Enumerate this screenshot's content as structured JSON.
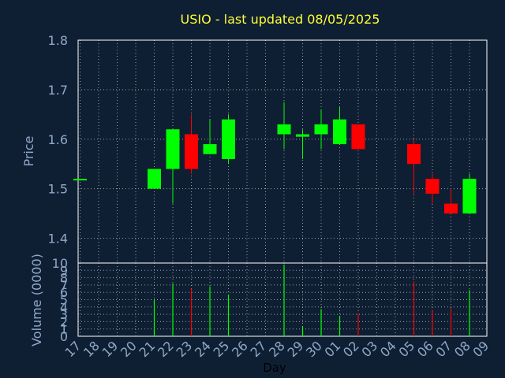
{
  "chart_data": {
    "type": "candlestick",
    "title": "USIO - last updated 08/05/2025",
    "xlabel": "Day",
    "price_panel": {
      "ylabel": "Price",
      "ylim": [
        1.35,
        1.8
      ],
      "yticks": [
        "1.4",
        "1.5",
        "1.6",
        "1.7",
        "1.8"
      ],
      "grid": true
    },
    "volume_panel": {
      "ylabel": "Volume (0000)",
      "ylim": [
        0,
        10
      ],
      "yticks": [
        "0",
        "1",
        "2",
        "3",
        "4",
        "5",
        "6",
        "7",
        "8",
        "9",
        "10"
      ],
      "grid": true
    },
    "x_ticks": [
      "17",
      "18",
      "19",
      "20",
      "21",
      "22",
      "23",
      "24",
      "25",
      "26",
      "27",
      "28",
      "29",
      "30",
      "01",
      "02",
      "03",
      "04",
      "05",
      "06",
      "07",
      "08",
      "09"
    ],
    "colors": {
      "up": "#00ff00",
      "down": "#ff0000",
      "flat": "#00ff00",
      "title": "#ffff33",
      "text": "#8fa8c8",
      "background": "#0f1f33"
    },
    "candles": [
      {
        "day": "17",
        "open": 1.52,
        "high": 1.52,
        "low": 1.52,
        "close": 1.52,
        "volume": 0.0
      },
      {
        "day": "21",
        "open": 1.5,
        "high": 1.54,
        "low": 1.5,
        "close": 1.54,
        "volume": 5.0
      },
      {
        "day": "22",
        "open": 1.54,
        "high": 1.62,
        "low": 1.47,
        "close": 1.62,
        "volume": 7.2
      },
      {
        "day": "23",
        "open": 1.61,
        "high": 1.65,
        "low": 1.53,
        "close": 1.54,
        "volume": 6.5
      },
      {
        "day": "24",
        "open": 1.57,
        "high": 1.64,
        "low": 1.57,
        "close": 1.59,
        "volume": 6.8
      },
      {
        "day": "25",
        "open": 1.56,
        "high": 1.65,
        "low": 1.55,
        "close": 1.64,
        "volume": 5.7
      },
      {
        "day": "28",
        "open": 1.61,
        "high": 1.675,
        "low": 1.58,
        "close": 1.63,
        "volume": 9.8
      },
      {
        "day": "29",
        "open": 1.605,
        "high": 1.62,
        "low": 1.56,
        "close": 1.61,
        "volume": 1.3
      },
      {
        "day": "30",
        "open": 1.61,
        "high": 1.66,
        "low": 1.58,
        "close": 1.63,
        "volume": 3.7
      },
      {
        "day": "01",
        "open": 1.59,
        "high": 1.665,
        "low": 1.59,
        "close": 1.64,
        "volume": 2.8
      },
      {
        "day": "02",
        "open": 1.63,
        "high": 1.63,
        "low": 1.58,
        "close": 1.58,
        "volume": 3.1
      },
      {
        "day": "05",
        "open": 1.59,
        "high": 1.6,
        "low": 1.49,
        "close": 1.55,
        "volume": 7.5
      },
      {
        "day": "06",
        "open": 1.52,
        "high": 1.53,
        "low": 1.47,
        "close": 1.49,
        "volume": 3.5
      },
      {
        "day": "07",
        "open": 1.47,
        "high": 1.5,
        "low": 1.45,
        "close": 1.45,
        "volume": 3.8
      },
      {
        "day": "08",
        "open": 1.45,
        "high": 1.53,
        "low": 1.45,
        "close": 1.52,
        "volume": 6.3
      }
    ]
  }
}
